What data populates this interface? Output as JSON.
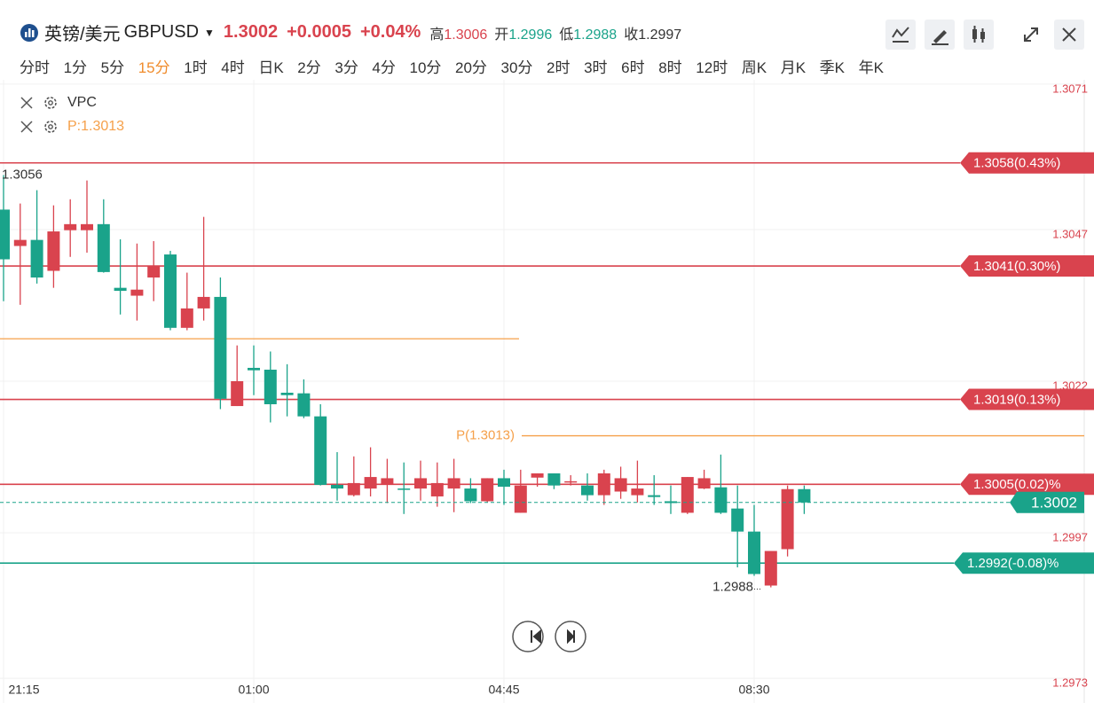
{
  "header": {
    "symbol": "英镑/美元",
    "code": "GBPUSD",
    "price": "1.3002",
    "change": "+0.0005",
    "change_pct": "+0.04%",
    "stats": [
      {
        "label": "高",
        "value": "1.3006"
      },
      {
        "label": "开",
        "value": "1.2996"
      },
      {
        "label": "低",
        "value": "1.2988"
      },
      {
        "label": "收",
        "value": "1.2997"
      }
    ]
  },
  "timeframes": [
    "分时",
    "1分",
    "5分",
    "15分",
    "1时",
    "4时",
    "日K",
    "2分",
    "3分",
    "4分",
    "10分",
    "20分",
    "30分",
    "2时",
    "3时",
    "6时",
    "8时",
    "12时",
    "周K",
    "月K",
    "季K",
    "年K"
  ],
  "active_timeframe": 3,
  "indicators": [
    "VPC",
    "P:1.3013"
  ],
  "chart_data": {
    "type": "candlestick",
    "categories": [
      "21:15",
      null,
      null,
      null,
      null,
      null,
      null,
      null,
      null,
      null,
      null,
      null,
      null,
      null,
      null,
      "01:00",
      null,
      null,
      null,
      null,
      null,
      null,
      null,
      null,
      null,
      null,
      null,
      null,
      null,
      null,
      "04:45",
      null,
      null,
      null,
      null,
      null,
      null,
      null,
      null,
      null,
      null,
      null,
      null,
      null,
      null,
      "08:30",
      null,
      null,
      null
    ],
    "open": [
      1.30503,
      1.30443,
      1.30453,
      1.30402,
      1.30469,
      1.30469,
      1.30479,
      1.30374,
      1.30361,
      1.30391,
      1.30429,
      1.30308,
      1.3034,
      1.30359,
      1.30179,
      1.30242,
      1.30239,
      1.30201,
      1.302,
      1.30162,
      1.30049,
      1.30032,
      1.30043,
      1.30049,
      1.30043,
      1.30043,
      1.3003,
      1.30043,
      1.30043,
      1.30022,
      1.3006,
      1.30003,
      1.30061,
      1.30068,
      1.30055,
      1.30048,
      1.30032,
      1.30038,
      1.30032,
      1.30032,
      1.30022,
      1.30003,
      1.30043,
      1.30045,
      1.3001,
      1.29972,
      1.29883,
      1.29943,
      1.30042
    ],
    "high": [
      1.3056,
      1.30513,
      1.30535,
      1.3051,
      1.3052,
      1.30551,
      1.3052,
      1.30454,
      1.30447,
      1.30451,
      1.30435,
      1.30399,
      1.30491,
      1.30391,
      1.30279,
      1.30279,
      1.30269,
      1.30248,
      1.30223,
      1.30182,
      1.30103,
      1.30096,
      1.30111,
      1.30092,
      1.30086,
      1.30089,
      1.30086,
      1.30092,
      1.3006,
      1.3006,
      1.30074,
      1.30074,
      1.30068,
      1.30068,
      1.30065,
      1.30068,
      1.30074,
      1.30079,
      1.30089,
      1.30065,
      1.30048,
      1.30062,
      1.30074,
      1.30099,
      1.30048,
      1.30016,
      1.2994,
      1.30048,
      1.30048
    ],
    "low": [
      1.30352,
      1.30346,
      1.30381,
      1.30374,
      1.30425,
      1.30432,
      1.30399,
      1.3033,
      1.3032,
      1.30352,
      1.30304,
      1.30304,
      1.3032,
      1.30174,
      1.30179,
      1.30197,
      1.30152,
      1.30162,
      1.30159,
      1.30048,
      1.30023,
      1.3003,
      1.3003,
      1.30019,
      1.30001,
      1.30023,
      1.30013,
      1.30004,
      1.30019,
      1.3002,
      1.30016,
      1.30003,
      1.30046,
      1.30042,
      1.30048,
      1.30023,
      1.30016,
      1.30026,
      1.3002,
      1.30016,
      1.30001,
      1.30001,
      1.30042,
      1.30001,
      1.29913,
      1.29899,
      1.2988,
      1.29931,
      1.30001
    ],
    "close": [
      1.30421,
      1.30453,
      1.30391,
      1.30467,
      1.30479,
      1.30479,
      1.304,
      1.30369,
      1.30371,
      1.3041,
      1.30308,
      1.3034,
      1.30359,
      1.30191,
      1.3022,
      1.30238,
      1.30182,
      1.30197,
      1.30162,
      1.30049,
      1.30043,
      1.30052,
      1.30062,
      1.3006,
      1.30041,
      1.3006,
      1.30052,
      1.3006,
      1.30022,
      1.3006,
      1.30046,
      1.30048,
      1.30068,
      1.30048,
      1.30055,
      1.30032,
      1.30068,
      1.3006,
      1.30043,
      1.30029,
      1.30019,
      1.30062,
      1.3006,
      1.30003,
      1.29972,
      1.29902,
      1.2994,
      1.30042,
      1.3002
    ],
    "up_color": "#d9434e",
    "down_color": "#1aa38a",
    "ylim": [
      1.2972,
      1.3072
    ],
    "yticks": [
      1.3071,
      1.3047,
      1.3022,
      1.2997,
      1.2973
    ],
    "grid": true,
    "levels": [
      {
        "value": 1.3058,
        "label": "1.3058(0.43%)",
        "color": "#d9434e"
      },
      {
        "value": 1.3041,
        "label": "1.3041(0.30%)",
        "color": "#d9434e"
      },
      {
        "value": 1.3019,
        "label": "1.3019(0.13%)",
        "color": "#d9434e"
      },
      {
        "value": 1.3005,
        "label": "1.3005(0.02)%",
        "color": "#d9434e"
      },
      {
        "value": 1.2992,
        "label": "1.2992(-0.08)%",
        "color": "#1aa38a"
      }
    ],
    "pivot": {
      "value": 1.3013,
      "label": "P(1.3013)",
      "color": "#f5a04a"
    },
    "vpc_line": {
      "value": 1.3029,
      "color": "#f5a04a"
    },
    "last_price": 1.3002,
    "high_marker": 1.3056,
    "low_marker": 1.2988
  }
}
